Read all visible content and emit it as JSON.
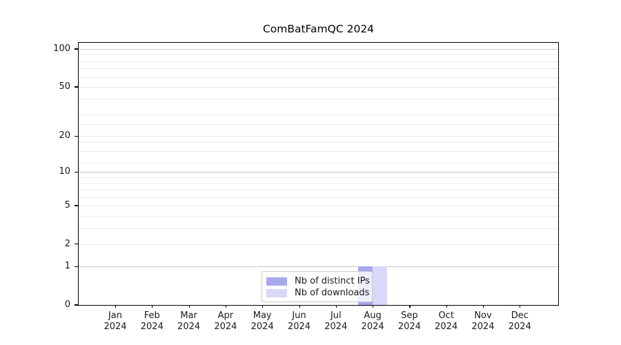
{
  "chart_data": {
    "type": "bar",
    "title": "ComBatFamQC 2024",
    "x_categories": [
      {
        "month": "Jan",
        "year": "2024"
      },
      {
        "month": "Feb",
        "year": "2024"
      },
      {
        "month": "Mar",
        "year": "2024"
      },
      {
        "month": "Apr",
        "year": "2024"
      },
      {
        "month": "May",
        "year": "2024"
      },
      {
        "month": "Jun",
        "year": "2024"
      },
      {
        "month": "Jul",
        "year": "2024"
      },
      {
        "month": "Aug",
        "year": "2024"
      },
      {
        "month": "Sep",
        "year": "2024"
      },
      {
        "month": "Oct",
        "year": "2024"
      },
      {
        "month": "Nov",
        "year": "2024"
      },
      {
        "month": "Dec",
        "year": "2024"
      }
    ],
    "series": [
      {
        "name": "Nb of distinct IPs",
        "color": "#a8a8ed",
        "values": [
          0,
          0,
          0,
          0,
          0,
          0,
          0,
          1,
          0,
          0,
          0,
          0
        ]
      },
      {
        "name": "Nb of downloads",
        "color": "#d8d8f8",
        "values": [
          0,
          0,
          0,
          0,
          0,
          0,
          0,
          1,
          0,
          0,
          0,
          0
        ]
      }
    ],
    "y_axis": {
      "scale": "log1p",
      "range": [
        0,
        100
      ],
      "ticks": [
        0,
        1,
        2,
        5,
        10,
        20,
        50,
        100
      ],
      "emphasized_gridlines": [
        1,
        10,
        100
      ],
      "minor_gridlines": [
        3,
        4,
        6,
        7,
        8,
        9,
        12,
        15,
        18,
        25,
        30,
        40,
        60,
        70,
        80,
        90
      ]
    },
    "legend": {
      "position": "lower center"
    },
    "colors": {
      "axis": "#000000",
      "grid_minor": "#e9e9e9",
      "grid_emphasis": "#c6c6c6",
      "tick_text": "#191919"
    }
  }
}
